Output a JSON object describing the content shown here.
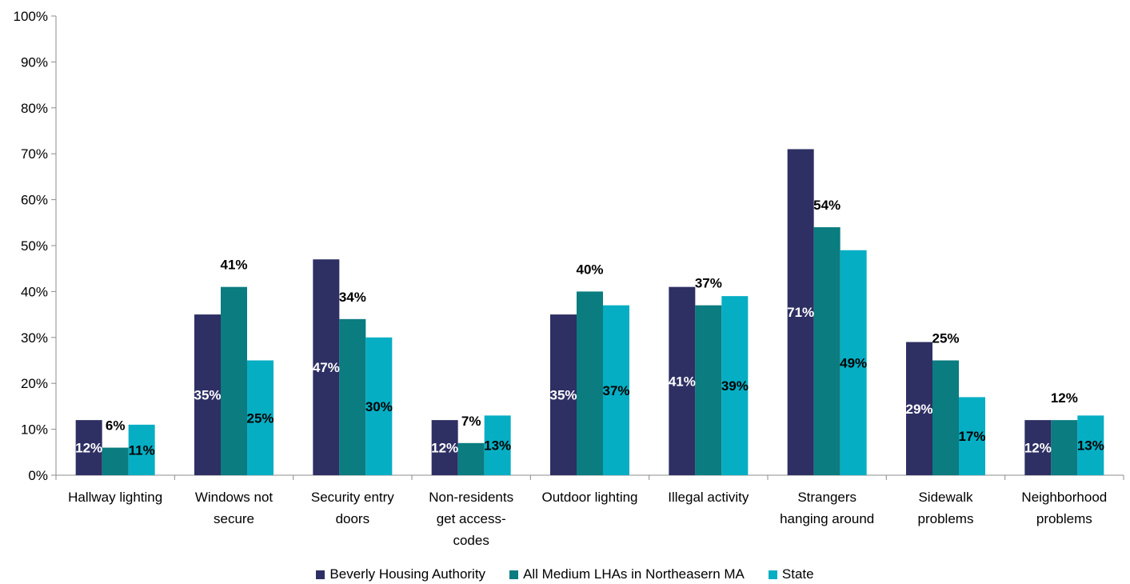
{
  "chart_data": {
    "type": "bar",
    "categories": [
      [
        "Hallway lighting"
      ],
      [
        "Windows not",
        "secure"
      ],
      [
        "Security entry",
        "doors"
      ],
      [
        "Non-residents",
        "get access-",
        "codes"
      ],
      [
        "Outdoor lighting"
      ],
      [
        "Illegal activity"
      ],
      [
        "Strangers",
        "hanging around"
      ],
      [
        "Sidewalk",
        "problems"
      ],
      [
        "Neighborhood",
        "problems"
      ]
    ],
    "series": [
      {
        "name": "Beverly Housing Authority",
        "color": "#2e2f63",
        "values": [
          12,
          35,
          47,
          12,
          35,
          41,
          71,
          29,
          12
        ]
      },
      {
        "name": "All Medium LHAs in Northeasern MA",
        "color": "#0b7c80",
        "values": [
          6,
          41,
          34,
          7,
          40,
          37,
          54,
          25,
          12
        ]
      },
      {
        "name": "State",
        "color": "#06aec3",
        "values": [
          11,
          25,
          30,
          13,
          37,
          39,
          49,
          17,
          13
        ]
      }
    ],
    "yticks": [
      "0%",
      "10%",
      "20%",
      "30%",
      "40%",
      "50%",
      "60%",
      "70%",
      "80%",
      "90%",
      "100%"
    ],
    "ylim": [
      0,
      100
    ],
    "data_label_color": {
      "inside": "#ffffff",
      "above": "#000000"
    },
    "grid": true,
    "legend_position": "bottom"
  }
}
